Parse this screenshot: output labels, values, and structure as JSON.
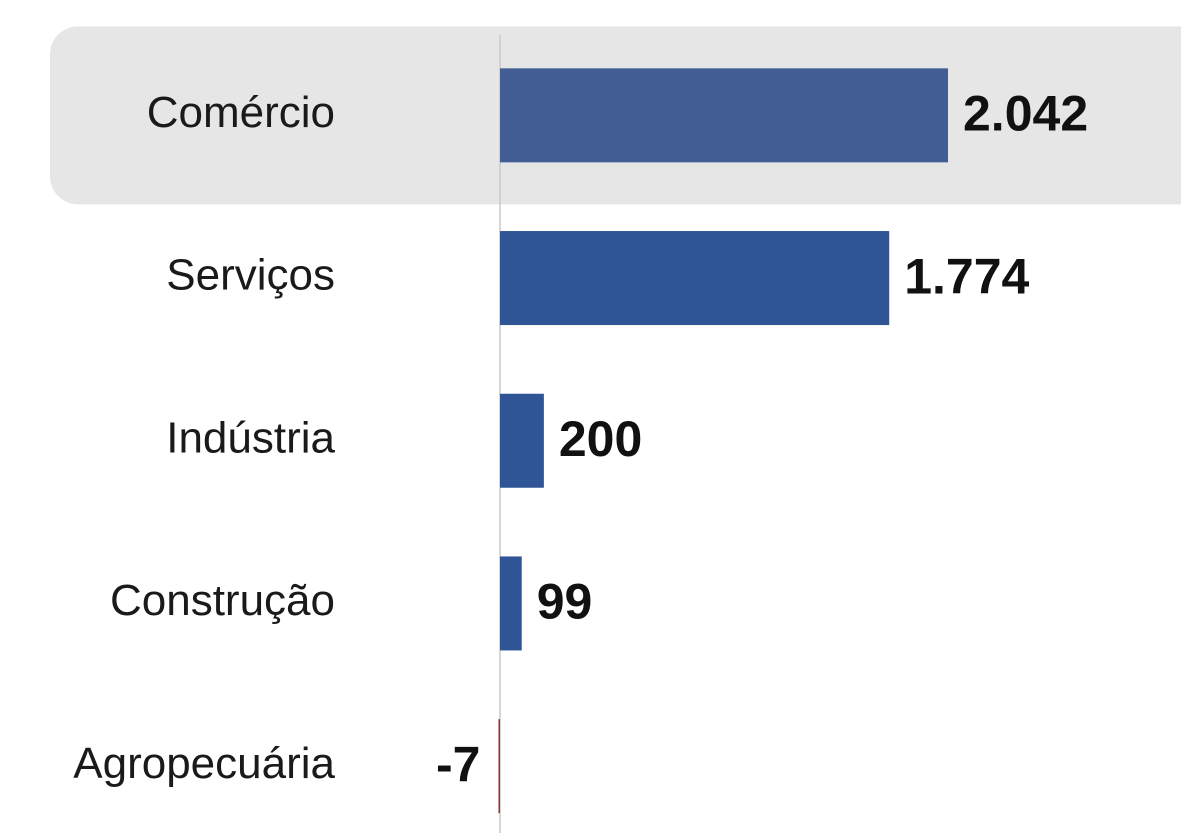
{
  "chart_data": {
    "type": "hbar",
    "categories": [
      "Comércio",
      "Serviços",
      "Indústria",
      "Construção",
      "Agropecuária"
    ],
    "values": [
      2042,
      1774,
      200,
      99,
      -7
    ],
    "value_labels": [
      "2.042",
      "1.774",
      "200",
      "99",
      "-7"
    ],
    "colors": [
      "#415d93",
      "#2f5597",
      "#2f5597",
      "#2f5597",
      "#8b3a3a"
    ],
    "highlight": 0,
    "highlight_color": "#e6e6e6"
  }
}
